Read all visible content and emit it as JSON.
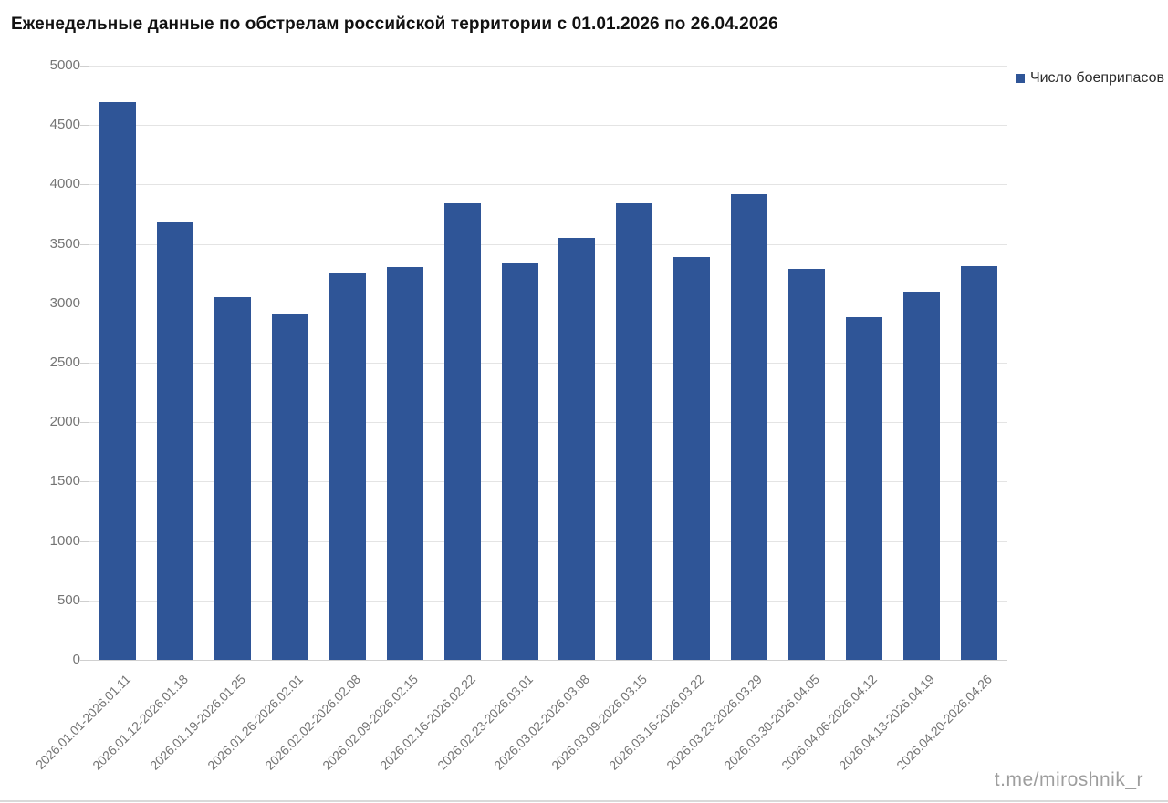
{
  "title": "Еженедельные данные по обстрелам российской территории с 01.01.2026 по 26.04.2026",
  "legend": {
    "label": "Число боеприпасов"
  },
  "watermark": "t.me/miroshnik_r",
  "colors": {
    "bar": "#2f5597",
    "axis_text": "#757575",
    "gridline": "#e4e4e4",
    "baseline": "#d0d0d0",
    "tick": "#cfcfcf"
  },
  "chart_data": {
    "type": "bar",
    "title": "Еженедельные данные по обстрелам российской территории с 01.01.2026 по 26.04.2026",
    "categories": [
      "2026.01.01-2026.01.11",
      "2026.01.12-2026.01.18",
      "2026.01.19-2026.01.25",
      "2026.01.26-2026.02.01",
      "2026.02.02-2026.02.08",
      "2026.02.09-2026.02.15",
      "2026.02.16-2026.02.22",
      "2026.02.23-2026.03.01",
      "2026.03.02-2026.03.08",
      "2026.03.09-2026.03.15",
      "2026.03.16-2026.03.22",
      "2026.03.23-2026.03.29",
      "2026.03.30-2026.04.05",
      "2026.04.06-2026.04.12",
      "2026.04.13-2026.04.19",
      "2026.04.20-2026.04.26"
    ],
    "series": [
      {
        "name": "Число боеприпасов",
        "values": [
          4690,
          3680,
          3050,
          2910,
          3260,
          3305,
          3840,
          3345,
          3550,
          3840,
          3390,
          3920,
          3290,
          2885,
          3095,
          3315
        ]
      }
    ],
    "xlabel": "",
    "ylabel": "",
    "ylim": [
      0,
      5000
    ],
    "ytick_step": 500,
    "grid": true,
    "legend_position": "top-right"
  }
}
